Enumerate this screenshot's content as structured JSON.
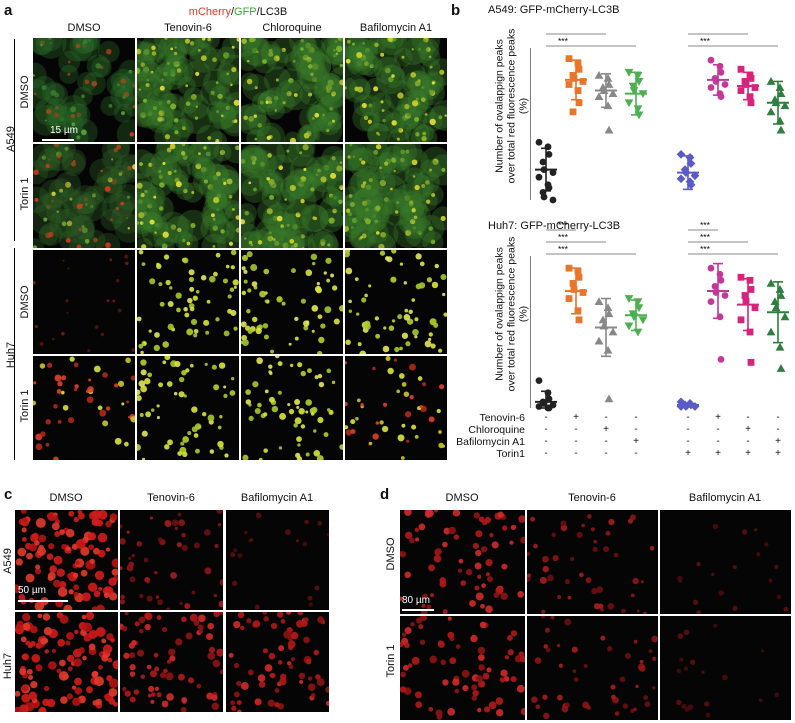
{
  "panel_letters": {
    "a": "a",
    "b": "b",
    "c": "c",
    "d": "d"
  },
  "panel_a": {
    "stain_title": {
      "mcherry": "mCherry",
      "slash1": "/",
      "gfp": "GFP",
      "rest": "/LC3B"
    },
    "colors": {
      "mcherry": "#e63a1f",
      "gfp": "#2fae2f"
    },
    "column_headers": [
      "DMSO",
      "Tenovin-6",
      "Chloroquine",
      "Bafilomycin A1"
    ],
    "cell_lines": [
      "A549",
      "Huh7"
    ],
    "row_labels": [
      "DMSO",
      "Torin 1",
      "DMSO",
      "Torin 1"
    ],
    "scale_bar": "15 µm"
  },
  "panel_b": {
    "chart_data": [
      {
        "type": "scatter",
        "title": "A549: GFP-mCherry-LC3B",
        "ylabel": "Number of ovalappign peaks over total red fluorescence peaks (%)",
        "ylim": [
          0,
          100
        ],
        "yticks": [
          "0",
          "20",
          "40",
          "60",
          "80",
          "100"
        ],
        "groups": [
          {
            "index": 0,
            "color": "#222222",
            "marker": "circle",
            "mean": 20,
            "sd": 14,
            "values": [
              38,
              35,
              30,
              25,
              20,
              18,
              15,
              10,
              8,
              5,
              2,
              0
            ]
          },
          {
            "index": 1,
            "color": "#e8752a",
            "marker": "square",
            "mean": 79,
            "sd": 13,
            "values": [
              93,
              90,
              86,
              82,
              80,
              78,
              76,
              72,
              64,
              58
            ]
          },
          {
            "index": 2,
            "color": "#888888",
            "marker": "triangle",
            "mean": 72,
            "sd": 11,
            "values": [
              82,
              80,
              76,
              74,
              72,
              70,
              68,
              62,
              46
            ]
          },
          {
            "index": 3,
            "color": "#4caf50",
            "marker": "triangle-down",
            "mean": 70,
            "sd": 14,
            "values": [
              84,
              82,
              78,
              75,
              72,
              70,
              64,
              60,
              56
            ]
          },
          {
            "index": 4,
            "color": "#5b5bc8",
            "marker": "diamond",
            "mean": 18,
            "sd": 11,
            "values": [
              30,
              28,
              24,
              20,
              18,
              16,
              14,
              12,
              10
            ]
          },
          {
            "index": 5,
            "color": "#c2399a",
            "marker": "circle",
            "mean": 79,
            "sd": 10,
            "values": [
              92,
              88,
              84,
              80,
              78,
              76,
              74,
              70,
              68
            ]
          },
          {
            "index": 6,
            "color": "#d8237a",
            "marker": "square",
            "mean": 75,
            "sd": 9,
            "values": [
              86,
              82,
              80,
              78,
              76,
              74,
              72,
              68,
              64
            ]
          },
          {
            "index": 7,
            "color": "#2f7d3f",
            "marker": "triangle",
            "mean": 64,
            "sd": 14,
            "values": [
              78,
              74,
              70,
              66,
              64,
              62,
              58,
              52,
              46
            ]
          }
        ],
        "significance": [
          {
            "from": 0,
            "to": 1,
            "label": "***"
          },
          {
            "from": 0,
            "to": 2,
            "label": "***"
          },
          {
            "from": 0,
            "to": 3,
            "label": "***"
          },
          {
            "from": 4,
            "to": 5,
            "label": "***"
          },
          {
            "from": 4,
            "to": 6,
            "label": "***"
          },
          {
            "from": 4,
            "to": 7,
            "label": "***"
          }
        ]
      },
      {
        "type": "scatter",
        "title": "Huh7: GFP-mCherry-LC3B",
        "ylabel": "Number of ovalappign peaks over total red fluorescence peaks (%)",
        "ylim": [
          0,
          100
        ],
        "yticks": [
          "0",
          "20",
          "40",
          "60",
          "80",
          "100"
        ],
        "groups": [
          {
            "index": 0,
            "color": "#222222",
            "marker": "circle",
            "mean": 4,
            "sd": 7,
            "values": [
              18,
              10,
              6,
              4,
              3,
              2,
              1,
              0,
              0
            ]
          },
          {
            "index": 1,
            "color": "#e8752a",
            "marker": "square",
            "mean": 77,
            "sd": 15,
            "values": [
              92,
              90,
              86,
              82,
              78,
              76,
              72,
              64,
              58
            ]
          },
          {
            "index": 2,
            "color": "#888888",
            "marker": "triangle",
            "mean": 53,
            "sd": 19,
            "values": [
              70,
              66,
              62,
              58,
              54,
              50,
              44,
              38,
              6
            ]
          },
          {
            "index": 3,
            "color": "#4caf50",
            "marker": "triangle-down",
            "mean": 61,
            "sd": 10,
            "values": [
              72,
              70,
              66,
              62,
              60,
              58,
              54,
              50
            ]
          },
          {
            "index": 4,
            "color": "#5b5bc8",
            "marker": "diamond",
            "mean": 2,
            "sd": 1,
            "values": [
              4,
              3,
              2,
              2,
              1,
              1,
              1
            ]
          },
          {
            "index": 5,
            "color": "#c2399a",
            "marker": "circle",
            "mean": 77,
            "sd": 18,
            "values": [
              92,
              88,
              84,
              80,
              76,
              74,
              70,
              60,
              32
            ]
          },
          {
            "index": 6,
            "color": "#d8237a",
            "marker": "square",
            "mean": 68,
            "sd": 17,
            "values": [
              86,
              84,
              78,
              74,
              70,
              66,
              58,
              50,
              30
            ]
          },
          {
            "index": 7,
            "color": "#2f7d3f",
            "marker": "triangle",
            "mean": 63,
            "sd": 20,
            "values": [
              82,
              78,
              74,
              70,
              66,
              60,
              50,
              40,
              26
            ]
          }
        ],
        "significance": [
          {
            "from": 0,
            "to": 1,
            "label": "***"
          },
          {
            "from": 0,
            "to": 2,
            "label": "***"
          },
          {
            "from": 0,
            "to": 3,
            "label": "***"
          },
          {
            "from": 4,
            "to": 5,
            "label": "***"
          },
          {
            "from": 4,
            "to": 6,
            "label": "***"
          },
          {
            "from": 4,
            "to": 7,
            "label": "***"
          }
        ]
      }
    ],
    "conditions": [
      {
        "name": "Tenovin-6",
        "signs": [
          "-",
          "+",
          "-",
          "-",
          "-",
          "+",
          "-",
          "-"
        ]
      },
      {
        "name": "Chloroquine",
        "signs": [
          "-",
          "-",
          "+",
          "-",
          "-",
          "-",
          "+",
          "-"
        ]
      },
      {
        "name": "Bafilomycin A1",
        "signs": [
          "-",
          "-",
          "-",
          "+",
          "-",
          "-",
          "-",
          "+"
        ]
      },
      {
        "name": "Torin1",
        "signs": [
          "-",
          "-",
          "-",
          "-",
          "+",
          "+",
          "+",
          "+"
        ]
      }
    ]
  },
  "panel_c": {
    "column_headers": [
      "DMSO",
      "Tenovin-6",
      "Bafilomycin A1"
    ],
    "row_labels": [
      "A549",
      "Huh7"
    ],
    "scale_bar": "50 µm"
  },
  "panel_d": {
    "column_headers": [
      "DMSO",
      "Tenovin-6",
      "Bafilomycin A1"
    ],
    "row_labels": [
      "DMSO",
      "Torin 1"
    ],
    "scale_bar": "80 µm"
  }
}
